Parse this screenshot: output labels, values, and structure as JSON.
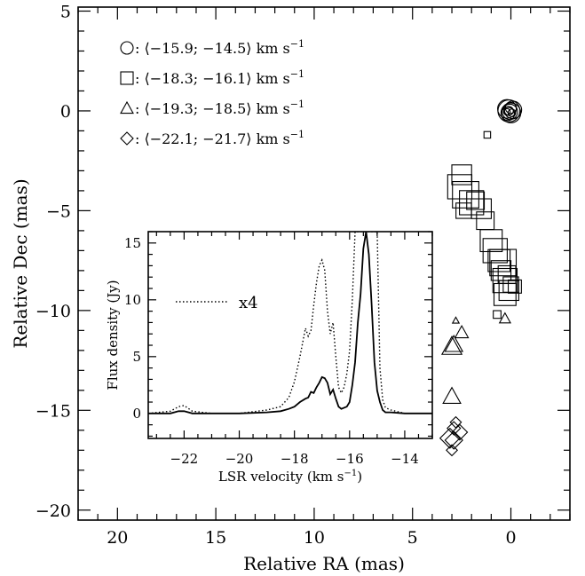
{
  "chart_data": [
    {
      "type": "scatter",
      "xlabel": "Relative RA (mas)",
      "ylabel": "Relative Dec (mas)",
      "xlim": [
        22,
        -3
      ],
      "ylim": [
        -20.5,
        5.2
      ],
      "xticks": [
        20,
        15,
        10,
        5,
        0
      ],
      "yticks": [
        5,
        0,
        -5,
        -10,
        -15,
        -20
      ],
      "xtick_labels": [
        "20",
        "15",
        "10",
        "5",
        "0"
      ],
      "ytick_labels": [
        "5",
        "0",
        "−5",
        "−10",
        "−15",
        "−20"
      ],
      "legend": [
        {
          "marker": "circle",
          "label": ": ⟨−15.9; −14.5⟩ km s",
          "sup": "−1"
        },
        {
          "marker": "square",
          "label": ": ⟨−18.3; −16.1⟩ km s",
          "sup": "−1"
        },
        {
          "marker": "triangle",
          "label": ": ⟨−19.3; −18.5⟩ km s",
          "sup": "−1"
        },
        {
          "marker": "diamond",
          "label": ": ⟨−22.1; −21.7⟩ km s",
          "sup": "−1"
        }
      ],
      "series": [
        {
          "marker": "circle",
          "points": [
            [
              0.1,
              0.0,
              1.0
            ],
            [
              0.0,
              -0.1,
              0.9
            ],
            [
              0.2,
              0.1,
              0.85
            ],
            [
              -0.1,
              0.05,
              0.8
            ],
            [
              0.05,
              -0.05,
              0.7
            ],
            [
              0.15,
              -0.15,
              0.6
            ],
            [
              0.0,
              0.15,
              0.5
            ],
            [
              0.1,
              0.0,
              0.4
            ],
            [
              -0.05,
              -0.1,
              0.35
            ],
            [
              0.2,
              -0.05,
              0.3
            ]
          ]
        },
        {
          "marker": "square",
          "points": [
            [
              1.2,
              -1.2,
              0.3
            ],
            [
              2.5,
              -3.2,
              0.9
            ],
            [
              2.6,
              -3.8,
              1.1
            ],
            [
              2.3,
              -4.2,
              1.2
            ],
            [
              2.0,
              -4.6,
              1.1
            ],
            [
              1.8,
              -4.5,
              0.8
            ],
            [
              1.5,
              -4.9,
              0.9
            ],
            [
              2.4,
              -5.0,
              0.7
            ],
            [
              1.3,
              -5.5,
              0.8
            ],
            [
              1.0,
              -6.5,
              1.0
            ],
            [
              0.8,
              -7.0,
              1.1
            ],
            [
              0.6,
              -7.5,
              1.0
            ],
            [
              0.5,
              -8.0,
              0.9
            ],
            [
              0.4,
              -7.6,
              1.2
            ],
            [
              0.3,
              -8.5,
              1.1
            ],
            [
              0.3,
              -9.2,
              1.0
            ],
            [
              0.1,
              -9.0,
              0.9
            ],
            [
              0.2,
              -8.2,
              0.8
            ],
            [
              0.0,
              -8.7,
              0.7
            ],
            [
              -0.2,
              -8.8,
              0.6
            ],
            [
              0.7,
              -10.2,
              0.35
            ]
          ]
        },
        {
          "marker": "triangle",
          "points": [
            [
              0.3,
              -10.4,
              0.5
            ],
            [
              2.5,
              -11.1,
              0.6
            ],
            [
              2.9,
              -11.7,
              0.8
            ],
            [
              3.0,
              -11.8,
              0.9
            ],
            [
              2.8,
              -10.5,
              0.3
            ],
            [
              3.0,
              -14.3,
              0.8
            ]
          ]
        },
        {
          "marker": "diamond",
          "points": [
            [
              2.8,
              -15.6,
              0.5
            ],
            [
              2.9,
              -15.9,
              0.6
            ],
            [
              2.6,
              -16.1,
              0.7
            ],
            [
              3.1,
              -16.4,
              0.9
            ],
            [
              2.9,
              -16.5,
              0.8
            ],
            [
              3.0,
              -17.0,
              0.5
            ]
          ]
        }
      ]
    },
    {
      "type": "line",
      "inset": true,
      "xlabel": "LSR velocity (km s",
      "xlabel_sup": "−1",
      "xlabel_close": ")",
      "ylabel": "Flux density (Jy)",
      "xlim": [
        -23.3,
        -13.0
      ],
      "ylim": [
        -2.2,
        16.0
      ],
      "xticks": [
        -22,
        -20,
        -18,
        -16,
        -14
      ],
      "yticks": [
        0,
        5,
        10,
        15
      ],
      "xtick_labels": [
        "−22",
        "−20",
        "−18",
        "−16",
        "−14"
      ],
      "ytick_labels": [
        "0",
        "5",
        "10",
        "15"
      ],
      "legend_text": "x4",
      "series": [
        {
          "style": "solid",
          "x": [
            -23.3,
            -22.5,
            -22.2,
            -22.0,
            -21.7,
            -21.0,
            -20.0,
            -19.0,
            -18.5,
            -18.2,
            -18.0,
            -17.8,
            -17.6,
            -17.5,
            -17.4,
            -17.3,
            -17.2,
            -17.1,
            -17.0,
            -16.9,
            -16.8,
            -16.7,
            -16.6,
            -16.5,
            -16.4,
            -16.3,
            -16.2,
            -16.1,
            -16.0,
            -15.9,
            -15.8,
            -15.7,
            -15.6,
            -15.5,
            -15.4,
            -15.3,
            -15.2,
            -15.1,
            -15.0,
            -14.9,
            -14.8,
            -14.7,
            -14.5,
            -14.0,
            -13.5,
            -13.0
          ],
          "y": [
            0.0,
            0.0,
            0.2,
            0.2,
            0.0,
            0.0,
            0.0,
            0.1,
            0.2,
            0.4,
            0.6,
            1.0,
            1.3,
            1.4,
            1.9,
            1.8,
            2.3,
            2.7,
            3.2,
            3.1,
            2.7,
            1.7,
            2.1,
            1.3,
            0.6,
            0.4,
            0.5,
            0.6,
            1.0,
            2.5,
            4.5,
            8.0,
            10.5,
            14.5,
            16.0,
            14.0,
            9.5,
            4.5,
            2.0,
            1.0,
            0.3,
            0.1,
            0.1,
            0.0,
            0.0,
            0.0
          ]
        },
        {
          "style": "dotted",
          "x": [
            -23.3,
            -22.5,
            -22.2,
            -22.0,
            -21.7,
            -21.0,
            -20.0,
            -19.0,
            -18.5,
            -18.2,
            -18.0,
            -17.8,
            -17.6,
            -17.5,
            -17.4,
            -17.3,
            -17.2,
            -17.1,
            -17.0,
            -16.9,
            -16.8,
            -16.7,
            -16.6,
            -16.5,
            -16.4,
            -16.3,
            -16.2,
            -16.1,
            -16.0,
            -15.9,
            -15.8,
            -15.7,
            -15.6,
            -15.5,
            -15.4,
            -15.3,
            -15.2,
            -15.1,
            -15.0,
            -14.9,
            -14.8,
            -14.7,
            -14.5,
            -14.0,
            -13.5,
            -13.0
          ],
          "y": [
            0.0,
            0.2,
            0.6,
            0.7,
            0.2,
            0.0,
            0.0,
            0.3,
            0.6,
            1.4,
            2.8,
            5.0,
            7.5,
            6.8,
            7.3,
            9.5,
            11.5,
            13.0,
            13.5,
            12.6,
            9.0,
            7.0,
            8.0,
            5.0,
            2.3,
            1.8,
            2.3,
            3.5,
            5.5,
            10.0,
            16.0,
            16.0,
            16.0,
            16.0,
            16.0,
            16.0,
            16.0,
            16.0,
            16.0,
            4.0,
            1.2,
            0.5,
            0.3,
            0.0,
            0.0,
            0.0
          ]
        }
      ]
    }
  ]
}
